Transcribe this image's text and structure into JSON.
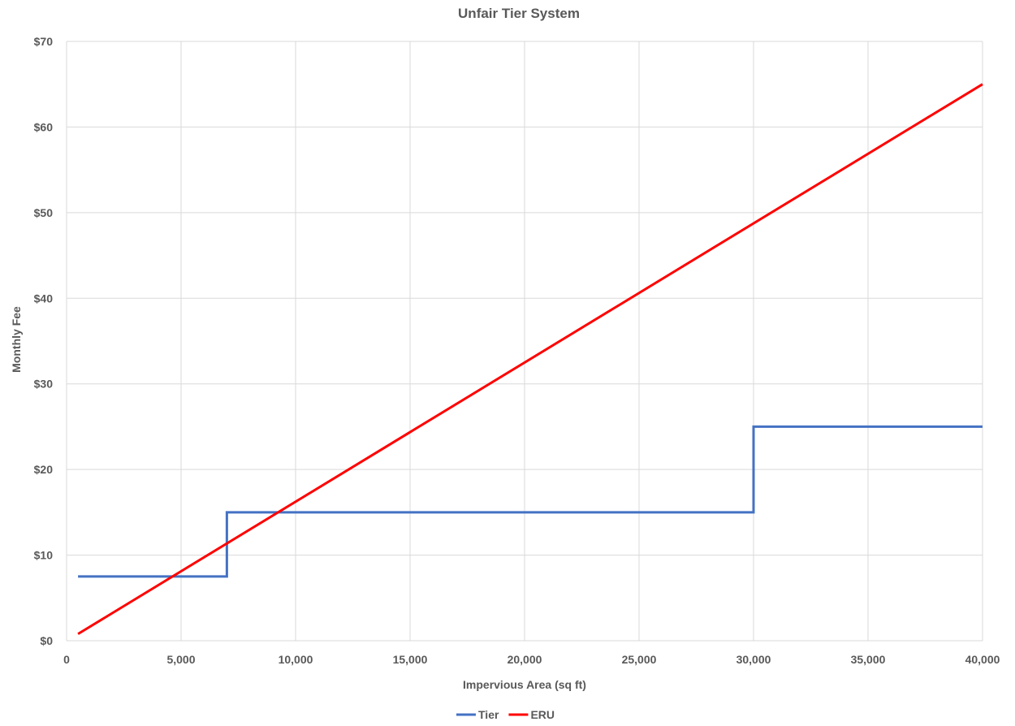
{
  "chart_data": {
    "type": "line",
    "title": "Unfair Tier System",
    "xlabel": "Impervious Area (sq ft)",
    "ylabel": "Monthly Fee",
    "xlim": [
      0,
      40000
    ],
    "ylim": [
      0,
      70
    ],
    "x_ticks": [
      0,
      5000,
      10000,
      15000,
      20000,
      25000,
      30000,
      35000,
      40000
    ],
    "x_tick_labels": [
      "0",
      "5,000",
      "10,000",
      "15,000",
      "20,000",
      "25,000",
      "30,000",
      "35,000",
      "40,000"
    ],
    "y_ticks": [
      0,
      10,
      20,
      30,
      40,
      50,
      60,
      70
    ],
    "y_tick_labels": [
      "$0",
      "$10",
      "$20",
      "$30",
      "$40",
      "$50",
      "$60",
      "$70"
    ],
    "grid": true,
    "legend_position": "bottom",
    "series": [
      {
        "name": "Tier",
        "color": "#4472c4",
        "step": true,
        "points": [
          [
            500,
            7.5
          ],
          [
            7000,
            7.5
          ],
          [
            7000,
            15
          ],
          [
            30000,
            15
          ],
          [
            30000,
            25
          ],
          [
            40000,
            25
          ]
        ]
      },
      {
        "name": "ERU",
        "color": "#ff0000",
        "step": false,
        "points": [
          [
            500,
            0.8
          ],
          [
            40000,
            65
          ]
        ]
      }
    ]
  }
}
